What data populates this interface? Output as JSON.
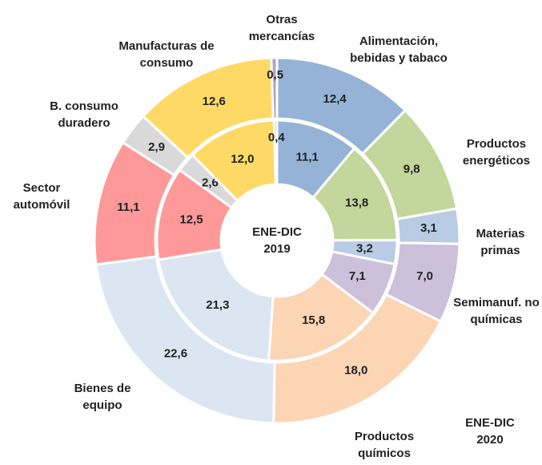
{
  "chart_data": {
    "type": "donut",
    "categories": [
      "Alimentación, bebidas y tabaco",
      "Productos energéticos",
      "Materias primas",
      "Semimanuf. no químicas",
      "Productos químicos",
      "Bienes de equipo",
      "Sector automóvil",
      "B. consumo duradero",
      "Manufacturas de consumo",
      "Otras mercancías"
    ],
    "colors": [
      "#95b3d7",
      "#c3d69b",
      "#b8cce4",
      "#ccc0da",
      "#fcd5b4",
      "#dce6f2",
      "#ff9999",
      "#d9d9d9",
      "#ffd966",
      "#b3a2c7"
    ],
    "series": [
      {
        "name": "ENE-DIC 2019",
        "values": [
          11.1,
          13.8,
          3.2,
          7.1,
          15.8,
          21.3,
          12.5,
          2.6,
          12.0,
          0.4
        ],
        "value_labels": [
          "11,1",
          "13,8",
          "3,2",
          "7,1",
          "15,8",
          "21,3",
          "12,5",
          "2,6",
          "12,0",
          "0,4"
        ]
      },
      {
        "name": "ENE-DIC 2020",
        "values": [
          12.4,
          9.8,
          3.1,
          7.0,
          18.0,
          22.6,
          11.1,
          2.9,
          12.6,
          0.5
        ],
        "value_labels": [
          "12,4",
          "9,8",
          "3,1",
          "7,0",
          "18,0",
          "22,6",
          "11,1",
          "2,9",
          "12,6",
          "0,5"
        ]
      }
    ]
  }
}
